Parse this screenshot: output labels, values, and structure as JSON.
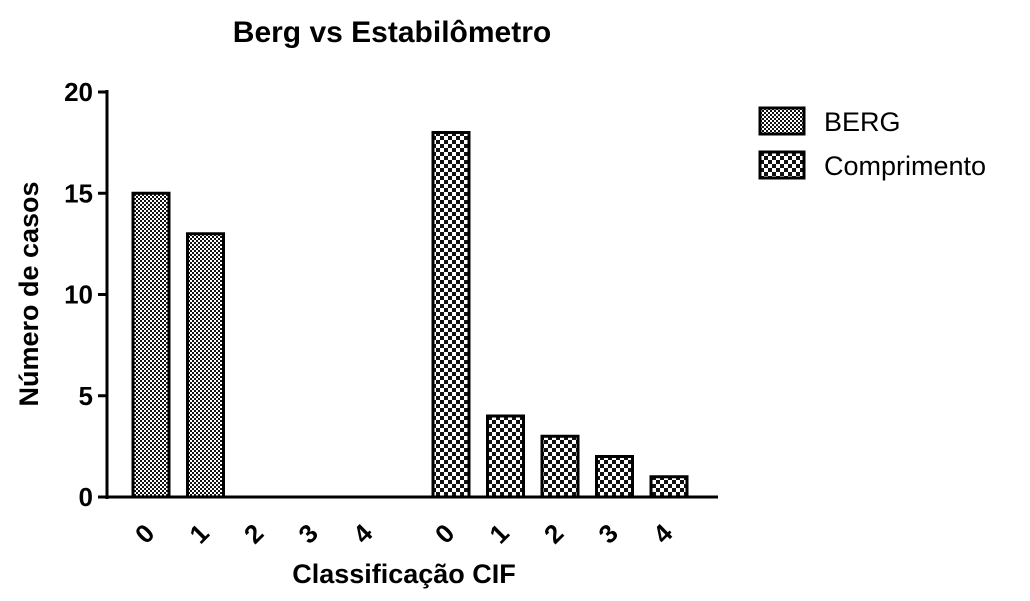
{
  "chart_data": {
    "type": "bar",
    "title": "Berg vs Estabilômetro",
    "xlabel": "Classificação CIF",
    "ylabel": "Número de casos",
    "ylim": [
      0,
      20
    ],
    "yticks": [
      "0",
      "5",
      "10",
      "15",
      "20"
    ],
    "categories": [
      "0",
      "1",
      "2",
      "3",
      "4"
    ],
    "series": [
      {
        "name": "BERG",
        "values": [
          15,
          13,
          0,
          0,
          0
        ],
        "pattern": "fine-checker"
      },
      {
        "name": "Comprimento",
        "values": [
          18,
          4,
          3,
          2,
          1
        ],
        "pattern": "coarse-checker"
      }
    ],
    "grid": false,
    "legend_position": "right",
    "colors": {
      "ink": "#000000",
      "background": "#ffffff"
    }
  }
}
